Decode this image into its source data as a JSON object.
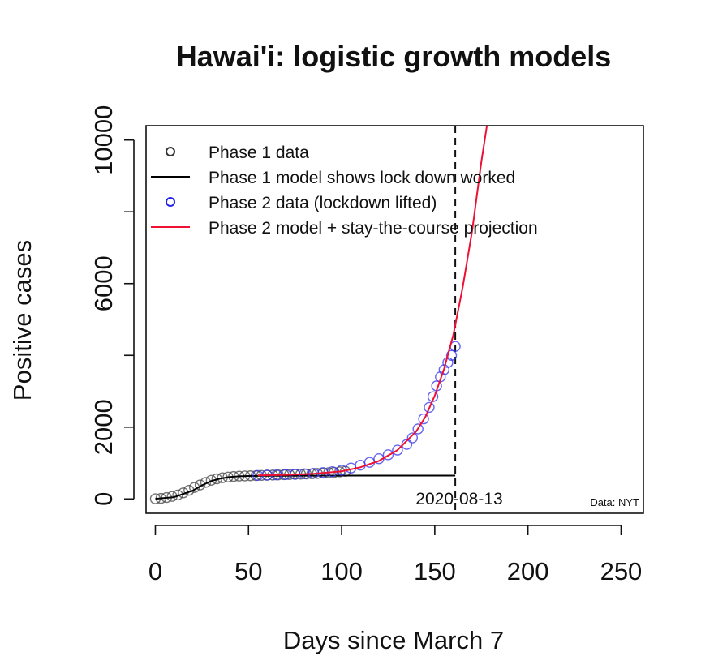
{
  "chart_data": {
    "type": "line",
    "title": "Hawai'i: logistic growth models",
    "xlabel": "Days since March 7",
    "ylabel": "Positive cases",
    "xlim": [
      -5,
      262
    ],
    "ylim": [
      -400,
      10400
    ],
    "x_ticks": [
      0,
      50,
      100,
      150,
      200,
      250
    ],
    "y_ticks": [
      0,
      2000,
      6000,
      10000
    ],
    "x_tick_labels": [
      "0",
      "50",
      "100",
      "150",
      "200",
      "250"
    ],
    "y_tick_labels": [
      "0",
      "2000",
      "6000",
      "10000"
    ],
    "grid": false,
    "legend": {
      "placement": "top-left",
      "items": [
        {
          "label": "Phase 1 data",
          "symbol": "circle",
          "color": "#333333"
        },
        {
          "label": "Phase 1 model shows lock down worked",
          "symbol": "line",
          "color": "#000000"
        },
        {
          "label": "Phase 2 data (lockdown lifted)",
          "symbol": "circle",
          "color": "#2222ee"
        },
        {
          "label": "Phase 2 model + stay-the-course projection",
          "symbol": "line",
          "color": "#ee1133"
        }
      ]
    },
    "vline": {
      "x": 161,
      "label": "2020-08-13",
      "style": "dashed"
    },
    "source_note": "Data: NYT",
    "series": [
      {
        "name": "Phase 1 data",
        "kind": "points",
        "color": "#444444",
        "x": [
          0,
          3,
          6,
          9,
          12,
          15,
          18,
          21,
          24,
          27,
          30,
          33,
          36,
          39,
          42,
          45,
          48,
          51,
          54,
          57,
          60,
          63,
          66,
          69,
          72,
          75,
          78,
          81,
          84,
          87,
          90,
          93,
          96,
          99,
          102
        ],
        "y": [
          5,
          15,
          40,
          70,
          110,
          170,
          240,
          320,
          390,
          460,
          520,
          560,
          590,
          610,
          625,
          635,
          640,
          645,
          650,
          655,
          660,
          665,
          670,
          675,
          680,
          685,
          690,
          695,
          700,
          710,
          720,
          730,
          740,
          755,
          770
        ]
      },
      {
        "name": "Phase 1 model shows lock down worked",
        "kind": "line",
        "color": "#000000",
        "x": [
          0,
          10,
          20,
          25,
          30,
          35,
          40,
          45,
          50,
          60,
          80,
          100,
          120,
          140,
          161
        ],
        "y": [
          5,
          50,
          230,
          380,
          500,
          570,
          610,
          630,
          640,
          645,
          648,
          650,
          650,
          650,
          650
        ]
      },
      {
        "name": "Phase 2 data (lockdown lifted)",
        "kind": "points",
        "color": "#3333ee",
        "x": [
          55,
          60,
          65,
          70,
          75,
          80,
          85,
          90,
          95,
          100,
          105,
          110,
          115,
          120,
          125,
          130,
          135,
          138,
          141,
          144,
          147,
          149,
          151,
          153,
          155,
          157,
          159,
          161
        ],
        "y": [
          655,
          665,
          670,
          680,
          690,
          700,
          715,
          735,
          760,
          800,
          860,
          940,
          1020,
          1120,
          1230,
          1360,
          1520,
          1700,
          1950,
          2230,
          2550,
          2850,
          3150,
          3400,
          3600,
          3800,
          4000,
          4250
        ]
      },
      {
        "name": "Phase 2 model + stay-the-course projection",
        "kind": "line",
        "color": "#ee1133",
        "x": [
          55,
          70,
          85,
          100,
          110,
          120,
          130,
          140,
          145,
          150,
          155,
          160,
          165,
          170,
          175,
          178
        ],
        "y": [
          655,
          670,
          700,
          770,
          880,
          1060,
          1360,
          1880,
          2290,
          2880,
          3620,
          4580,
          5900,
          7450,
          9400,
          10400
        ]
      }
    ]
  }
}
